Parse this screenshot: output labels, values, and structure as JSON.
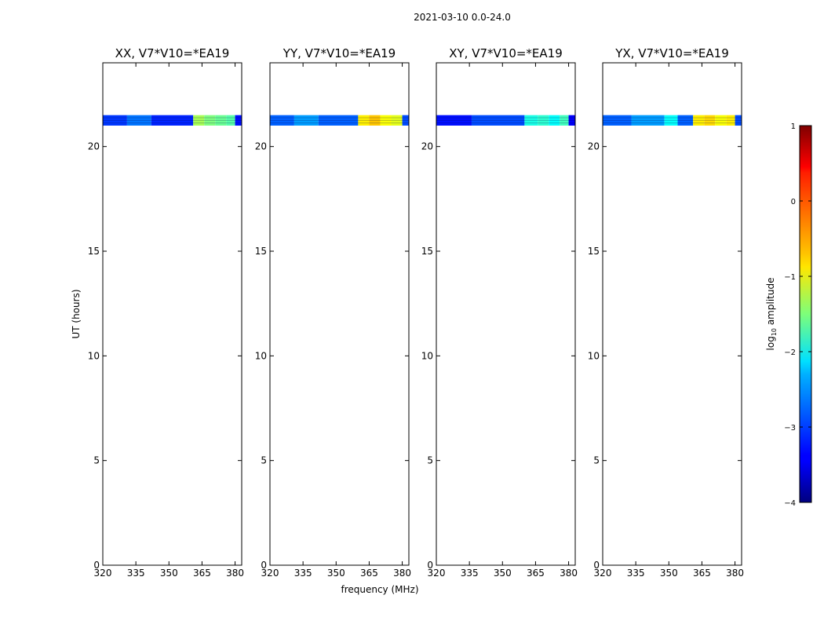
{
  "figure": {
    "suptitle": "2021-03-10 0.0-24.0",
    "ylabel": "UT (hours)",
    "xlabel": "frequency (MHz)"
  },
  "chart_data": {
    "type": "heatmap",
    "xlim": [
      320,
      383
    ],
    "ylim": [
      0,
      24
    ],
    "xticks": [
      "320",
      "335",
      "350",
      "365",
      "380"
    ],
    "yticks": [
      "0",
      "5",
      "10",
      "15",
      "20"
    ],
    "data_time_range_hours": [
      21.0,
      21.5
    ],
    "colormap": "jet",
    "panels": [
      {
        "title": "XX, V7*V10=*EA19",
        "segments": [
          {
            "x": [
              320,
              331
            ],
            "log_amp": -3.1
          },
          {
            "x": [
              331,
              342
            ],
            "log_amp": -2.8
          },
          {
            "x": [
              342,
              361
            ],
            "log_amp": -3.2
          },
          {
            "x": [
              361,
              366
            ],
            "log_amp": -1.3
          },
          {
            "x": [
              366,
              371
            ],
            "log_amp": -1.5
          },
          {
            "x": [
              371,
              376
            ],
            "log_amp": -1.6
          },
          {
            "x": [
              376,
              380
            ],
            "log_amp": -1.7
          },
          {
            "x": [
              380,
              383
            ],
            "log_amp": -3.3
          }
        ]
      },
      {
        "title": "YY, V7*V10=*EA19",
        "segments": [
          {
            "x": [
              320,
              331
            ],
            "log_amp": -2.9
          },
          {
            "x": [
              331,
              342
            ],
            "log_amp": -2.6
          },
          {
            "x": [
              342,
              360
            ],
            "log_amp": -2.9
          },
          {
            "x": [
              360,
              365
            ],
            "log_amp": -0.8
          },
          {
            "x": [
              365,
              370
            ],
            "log_amp": -0.6
          },
          {
            "x": [
              370,
              375
            ],
            "log_amp": -0.9
          },
          {
            "x": [
              375,
              380
            ],
            "log_amp": -1.0
          },
          {
            "x": [
              380,
              383
            ],
            "log_amp": -3.0
          }
        ]
      },
      {
        "title": "XY, V7*V10=*EA19",
        "segments": [
          {
            "x": [
              320,
              336
            ],
            "log_amp": -3.3
          },
          {
            "x": [
              336,
              360
            ],
            "log_amp": -3.0
          },
          {
            "x": [
              360,
              366
            ],
            "log_amp": -2.0
          },
          {
            "x": [
              366,
              371
            ],
            "log_amp": -1.9
          },
          {
            "x": [
              371,
              376
            ],
            "log_amp": -2.1
          },
          {
            "x": [
              376,
              380
            ],
            "log_amp": -1.8
          },
          {
            "x": [
              380,
              383
            ],
            "log_amp": -3.4
          }
        ]
      },
      {
        "title": "YX, V7*V10=*EA19",
        "segments": [
          {
            "x": [
              320,
              333
            ],
            "log_amp": -2.9
          },
          {
            "x": [
              333,
              348
            ],
            "log_amp": -2.6
          },
          {
            "x": [
              348,
              354
            ],
            "log_amp": -2.1
          },
          {
            "x": [
              354,
              361
            ],
            "log_amp": -2.9
          },
          {
            "x": [
              361,
              366
            ],
            "log_amp": -0.8
          },
          {
            "x": [
              366,
              371
            ],
            "log_amp": -0.7
          },
          {
            "x": [
              371,
              376
            ],
            "log_amp": -0.9
          },
          {
            "x": [
              376,
              380
            ],
            "log_amp": -0.8
          },
          {
            "x": [
              380,
              383
            ],
            "log_amp": -3.0
          }
        ]
      }
    ],
    "colorbar": {
      "label": "log₁₀ amplitude",
      "ticks": [
        "1",
        "0",
        "−1",
        "−2",
        "−3",
        "−4"
      ],
      "range": [
        -4,
        1
      ]
    }
  }
}
